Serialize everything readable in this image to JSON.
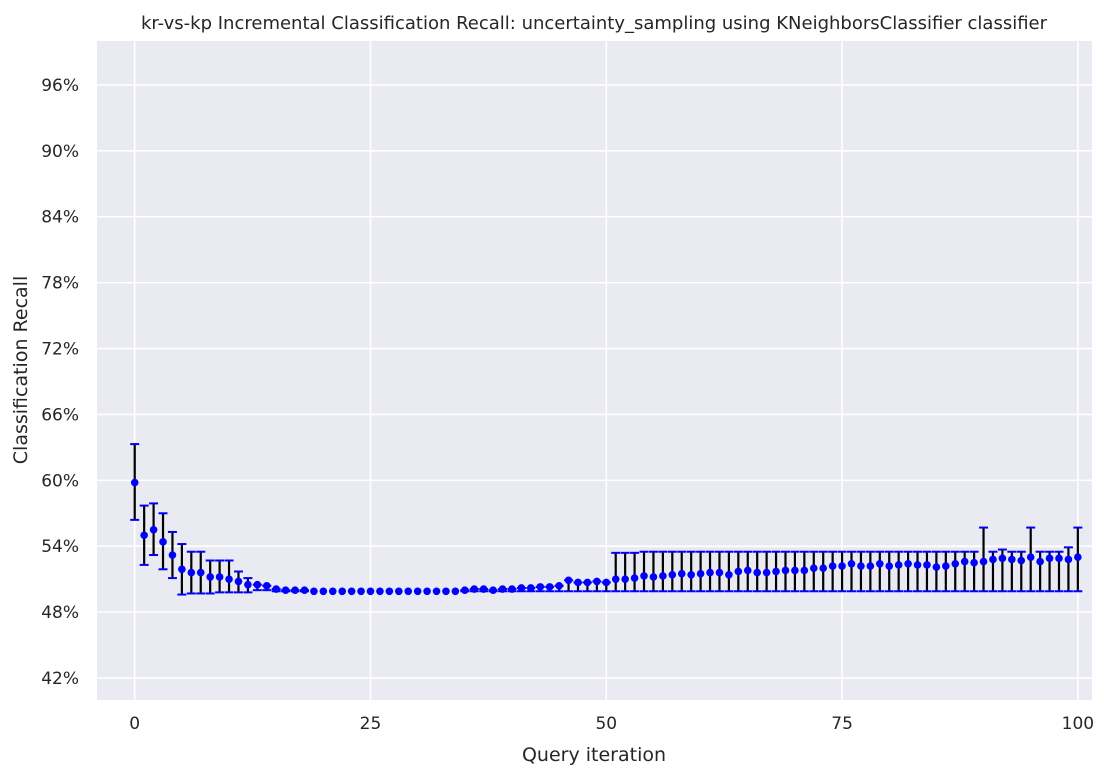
{
  "chart_data": {
    "type": "scatter",
    "title": "kr-vs-kp Incremental Classification Recall: uncertainty_sampling using KNeighborsClassifier classifier",
    "xlabel": "Query iteration",
    "ylabel": "Classification Recall",
    "xlim": [
      -4,
      101.5
    ],
    "ylim": [
      0.4,
      1.0
    ],
    "x_ticks": [
      0,
      25,
      50,
      75,
      100
    ],
    "x_tick_labels": [
      "0",
      "25",
      "50",
      "75",
      "100"
    ],
    "y_ticks": [
      0.42,
      0.48,
      0.54,
      0.6,
      0.66,
      0.72,
      0.78,
      0.84,
      0.9,
      0.96
    ],
    "y_tick_labels": [
      "42%",
      "48%",
      "54%",
      "60%",
      "66%",
      "72%",
      "78%",
      "84%",
      "90%",
      "96%"
    ],
    "grid": true,
    "colors": {
      "plot_background": "#eaeaf2",
      "grid": "#ffffff",
      "marker": "#0000ff",
      "errorbar": "#000000",
      "errorbar_cap": "#0000ff"
    },
    "series": [
      {
        "x": [
          0,
          1,
          2,
          3,
          4,
          5,
          6,
          7,
          8,
          9,
          10,
          11,
          12,
          13,
          14,
          15,
          16,
          17,
          18,
          19,
          20,
          21,
          22,
          23,
          24,
          25,
          26,
          27,
          28,
          29,
          30,
          31,
          32,
          33,
          34,
          35,
          36,
          37,
          38,
          39,
          40,
          41,
          42,
          43,
          44,
          45,
          46,
          47,
          48,
          49,
          50,
          51,
          52,
          53,
          54,
          55,
          56,
          57,
          58,
          59,
          60,
          61,
          62,
          63,
          64,
          65,
          66,
          67,
          68,
          69,
          70,
          71,
          72,
          73,
          74,
          75,
          76,
          77,
          78,
          79,
          80,
          81,
          82,
          83,
          84,
          85,
          86,
          87,
          88,
          89,
          90,
          91,
          92,
          93,
          94,
          95,
          96,
          97,
          98,
          99,
          100
        ],
        "y": [
          0.598,
          0.55,
          0.555,
          0.544,
          0.532,
          0.519,
          0.516,
          0.516,
          0.512,
          0.512,
          0.51,
          0.508,
          0.505,
          0.505,
          0.504,
          0.501,
          0.5,
          0.5,
          0.5,
          0.499,
          0.499,
          0.499,
          0.499,
          0.499,
          0.499,
          0.499,
          0.499,
          0.499,
          0.499,
          0.499,
          0.499,
          0.499,
          0.499,
          0.499,
          0.499,
          0.5,
          0.501,
          0.501,
          0.5,
          0.501,
          0.501,
          0.502,
          0.502,
          0.503,
          0.503,
          0.504,
          0.509,
          0.507,
          0.507,
          0.508,
          0.507,
          0.51,
          0.51,
          0.511,
          0.513,
          0.512,
          0.513,
          0.514,
          0.515,
          0.514,
          0.515,
          0.516,
          0.516,
          0.514,
          0.517,
          0.518,
          0.516,
          0.516,
          0.517,
          0.518,
          0.518,
          0.518,
          0.52,
          0.52,
          0.522,
          0.522,
          0.524,
          0.522,
          0.522,
          0.524,
          0.522,
          0.523,
          0.524,
          0.523,
          0.523,
          0.521,
          0.522,
          0.524,
          0.526,
          0.525,
          0.526,
          0.528,
          0.529,
          0.528,
          0.527,
          0.53,
          0.526,
          0.529,
          0.529,
          0.528,
          0.53
        ],
        "yerr_low": [
          0.564,
          0.523,
          0.532,
          0.519,
          0.511,
          0.496,
          0.497,
          0.497,
          0.497,
          0.498,
          0.498,
          0.498,
          0.498,
          0.5,
          0.5,
          0.499,
          0.499,
          0.499,
          0.499,
          0.499,
          0.499,
          0.499,
          0.499,
          0.499,
          0.499,
          0.499,
          0.499,
          0.499,
          0.499,
          0.499,
          0.499,
          0.499,
          0.499,
          0.499,
          0.499,
          0.499,
          0.499,
          0.499,
          0.499,
          0.499,
          0.499,
          0.499,
          0.499,
          0.499,
          0.499,
          0.499,
          0.499,
          0.499,
          0.499,
          0.499,
          0.499,
          0.499,
          0.499,
          0.499,
          0.499,
          0.499,
          0.499,
          0.499,
          0.499,
          0.499,
          0.499,
          0.499,
          0.499,
          0.499,
          0.499,
          0.499,
          0.499,
          0.499,
          0.499,
          0.499,
          0.499,
          0.499,
          0.499,
          0.499,
          0.499,
          0.499,
          0.499,
          0.499,
          0.499,
          0.499,
          0.499,
          0.499,
          0.499,
          0.499,
          0.499,
          0.499,
          0.499,
          0.499,
          0.499,
          0.499,
          0.499,
          0.499,
          0.499,
          0.499,
          0.499,
          0.499,
          0.499,
          0.499,
          0.499,
          0.499,
          0.499
        ],
        "yerr_high": [
          0.633,
          0.577,
          0.579,
          0.57,
          0.553,
          0.542,
          0.535,
          0.535,
          0.527,
          0.527,
          0.527,
          0.517,
          0.511,
          0.505,
          0.504,
          0.501,
          0.5,
          0.5,
          0.5,
          0.499,
          0.499,
          0.499,
          0.499,
          0.499,
          0.499,
          0.499,
          0.499,
          0.499,
          0.499,
          0.499,
          0.499,
          0.499,
          0.499,
          0.499,
          0.499,
          0.5,
          0.501,
          0.501,
          0.5,
          0.501,
          0.501,
          0.502,
          0.502,
          0.503,
          0.503,
          0.504,
          0.509,
          0.507,
          0.507,
          0.508,
          0.507,
          0.534,
          0.534,
          0.534,
          0.535,
          0.535,
          0.535,
          0.535,
          0.535,
          0.535,
          0.535,
          0.535,
          0.535,
          0.535,
          0.535,
          0.535,
          0.535,
          0.535,
          0.535,
          0.535,
          0.535,
          0.535,
          0.535,
          0.535,
          0.535,
          0.535,
          0.535,
          0.535,
          0.535,
          0.535,
          0.535,
          0.535,
          0.535,
          0.535,
          0.535,
          0.535,
          0.535,
          0.535,
          0.535,
          0.535,
          0.557,
          0.535,
          0.537,
          0.535,
          0.535,
          0.557,
          0.535,
          0.535,
          0.535,
          0.539,
          0.557
        ]
      }
    ]
  }
}
